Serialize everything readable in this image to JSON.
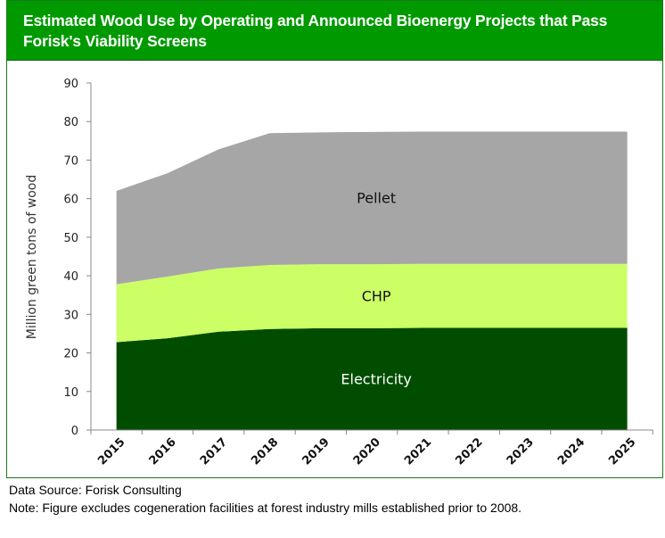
{
  "chart_data": {
    "type": "area",
    "stacked": true,
    "title": "Estimated Wood Use by Operating and Announced Bioenergy Projects that Pass Forisk's Viability Screens",
    "ylabel": "Million green tons of wood",
    "xlabel": "",
    "ylim": [
      0,
      90
    ],
    "yticks": [
      0,
      10,
      20,
      30,
      40,
      50,
      60,
      70,
      80,
      90
    ],
    "categories": [
      "2015",
      "2016",
      "2017",
      "2018",
      "2019",
      "2020",
      "2021",
      "2022",
      "2023",
      "2024",
      "2025"
    ],
    "series": [
      {
        "name": "Electricity",
        "color": "#004d00",
        "label_color": "#ffffff",
        "values": [
          22.8,
          23.8,
          25.5,
          26.2,
          26.4,
          26.4,
          26.5,
          26.5,
          26.5,
          26.5,
          26.5
        ]
      },
      {
        "name": "CHP",
        "color": "#ccff66",
        "label_color": "#111111",
        "values": [
          15.0,
          16.0,
          16.4,
          16.6,
          16.6,
          16.6,
          16.6,
          16.6,
          16.6,
          16.6,
          16.6
        ]
      },
      {
        "name": "Pellet",
        "color": "#a6a6a6",
        "label_color": "#111111",
        "values": [
          24.2,
          26.8,
          30.9,
          34.2,
          34.2,
          34.3,
          34.3,
          34.3,
          34.3,
          34.3,
          34.3
        ]
      }
    ],
    "grid": false,
    "legend": "inline labels"
  },
  "header_color": "#009900",
  "footer": {
    "source": "Data Source: Forisk Consulting",
    "note": "Note: Figure excludes cogeneration facilities at forest industry mills established prior to 2008."
  }
}
